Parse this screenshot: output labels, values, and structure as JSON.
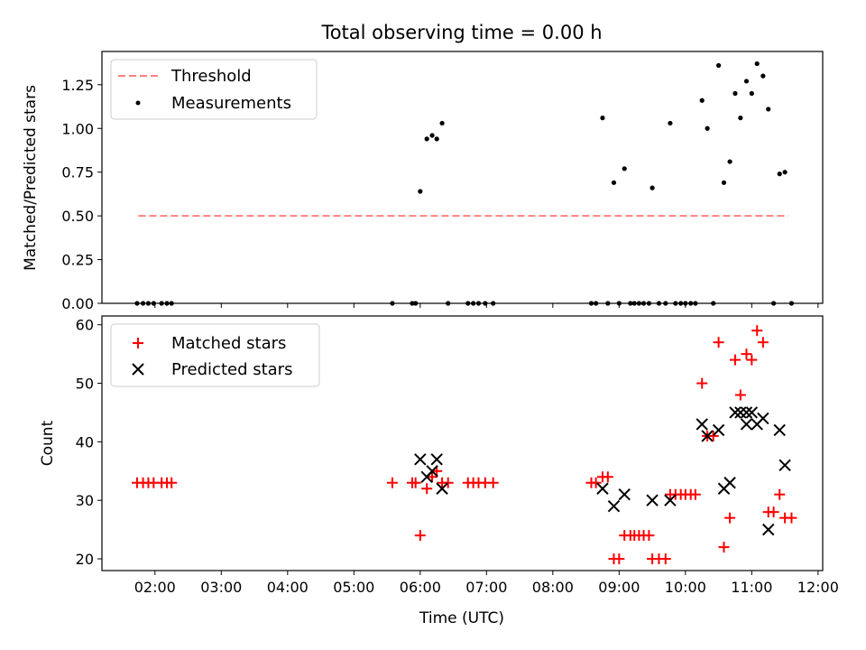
{
  "chart_data": [
    {
      "type": "scatter",
      "title": "Total observing time = 0.00 h",
      "xlabel": "",
      "ylabel": "Matched/Predicted stars",
      "ylim": [
        0,
        1.44
      ],
      "yticks": [
        "0.00",
        "0.25",
        "0.50",
        "0.75",
        "1.00",
        "1.25"
      ],
      "ytick_values": [
        0,
        0.25,
        0.5,
        0.75,
        1.0,
        1.25
      ],
      "legend_position": "upper-left",
      "grid": false,
      "threshold": {
        "name": "Threshold",
        "value": 0.5,
        "color": "#ff8080",
        "x_range": [
          1.75,
          11.55
        ]
      },
      "series": [
        {
          "name": "Measurements",
          "color": "#000000",
          "marker": "dot",
          "points": [
            [
              1.73,
              0
            ],
            [
              1.82,
              0
            ],
            [
              1.9,
              0
            ],
            [
              1.98,
              0
            ],
            [
              2.1,
              0
            ],
            [
              2.18,
              0
            ],
            [
              2.25,
              0
            ],
            [
              5.58,
              0
            ],
            [
              5.88,
              0
            ],
            [
              5.93,
              0
            ],
            [
              6.0,
              0.64
            ],
            [
              6.1,
              0.94
            ],
            [
              6.18,
              0.96
            ],
            [
              6.25,
              0.94
            ],
            [
              6.33,
              1.03
            ],
            [
              6.42,
              0
            ],
            [
              6.72,
              0
            ],
            [
              6.8,
              0
            ],
            [
              6.88,
              0
            ],
            [
              6.98,
              0
            ],
            [
              7.1,
              0
            ],
            [
              8.58,
              0
            ],
            [
              8.65,
              0
            ],
            [
              8.75,
              1.06
            ],
            [
              8.83,
              0
            ],
            [
              8.92,
              0.69
            ],
            [
              9.0,
              0
            ],
            [
              9.08,
              0.77
            ],
            [
              9.17,
              0
            ],
            [
              9.23,
              0
            ],
            [
              9.3,
              0
            ],
            [
              9.37,
              0
            ],
            [
              9.45,
              0
            ],
            [
              9.5,
              0.66
            ],
            [
              9.6,
              0
            ],
            [
              9.7,
              0
            ],
            [
              9.77,
              1.03
            ],
            [
              9.85,
              0
            ],
            [
              9.93,
              0
            ],
            [
              10.0,
              0
            ],
            [
              10.08,
              0
            ],
            [
              10.15,
              0
            ],
            [
              10.25,
              1.16
            ],
            [
              10.33,
              1.0
            ],
            [
              10.42,
              0
            ],
            [
              10.5,
              1.36
            ],
            [
              10.58,
              0.69
            ],
            [
              10.67,
              0.81
            ],
            [
              10.75,
              1.2
            ],
            [
              10.83,
              1.06
            ],
            [
              10.92,
              1.27
            ],
            [
              11.0,
              1.2
            ],
            [
              11.08,
              1.37
            ],
            [
              11.17,
              1.3
            ],
            [
              11.25,
              1.11
            ],
            [
              11.33,
              0
            ],
            [
              11.42,
              0.74
            ],
            [
              11.5,
              0.75
            ],
            [
              11.6,
              0
            ]
          ]
        }
      ]
    },
    {
      "type": "scatter",
      "title": "",
      "xlabel": "Time (UTC)",
      "ylabel": "Count",
      "ylim": [
        18,
        61.5
      ],
      "yticks": [
        "20",
        "30",
        "40",
        "50",
        "60"
      ],
      "ytick_values": [
        20,
        30,
        40,
        50,
        60
      ],
      "xlim": [
        1.2,
        12.07
      ],
      "xticks": [
        "02:00",
        "03:00",
        "04:00",
        "05:00",
        "06:00",
        "07:00",
        "08:00",
        "09:00",
        "10:00",
        "11:00",
        "12:00"
      ],
      "xtick_values": [
        2,
        3,
        4,
        5,
        6,
        7,
        8,
        9,
        10,
        11,
        12
      ],
      "legend_position": "upper-left",
      "grid": false,
      "series": [
        {
          "name": "Matched stars",
          "color": "#ff0000",
          "marker": "plus",
          "points": [
            [
              1.73,
              33
            ],
            [
              1.82,
              33
            ],
            [
              1.9,
              33
            ],
            [
              1.98,
              33
            ],
            [
              2.1,
              33
            ],
            [
              2.18,
              33
            ],
            [
              2.25,
              33
            ],
            [
              5.58,
              33
            ],
            [
              5.88,
              33
            ],
            [
              5.93,
              33
            ],
            [
              6.0,
              24
            ],
            [
              6.1,
              32
            ],
            [
              6.18,
              34
            ],
            [
              6.25,
              35
            ],
            [
              6.33,
              33
            ],
            [
              6.42,
              33
            ],
            [
              6.72,
              33
            ],
            [
              6.8,
              33
            ],
            [
              6.88,
              33
            ],
            [
              6.98,
              33
            ],
            [
              7.1,
              33
            ],
            [
              8.58,
              33
            ],
            [
              8.65,
              33
            ],
            [
              8.75,
              34
            ],
            [
              8.83,
              34
            ],
            [
              8.92,
              20
            ],
            [
              9.0,
              20
            ],
            [
              9.08,
              24
            ],
            [
              9.17,
              24
            ],
            [
              9.23,
              24
            ],
            [
              9.3,
              24
            ],
            [
              9.37,
              24
            ],
            [
              9.45,
              24
            ],
            [
              9.5,
              20
            ],
            [
              9.6,
              20
            ],
            [
              9.7,
              20
            ],
            [
              9.77,
              31
            ],
            [
              9.85,
              31
            ],
            [
              9.93,
              31
            ],
            [
              10.0,
              31
            ],
            [
              10.08,
              31
            ],
            [
              10.15,
              31
            ],
            [
              10.25,
              50
            ],
            [
              10.33,
              41
            ],
            [
              10.42,
              41
            ],
            [
              10.5,
              57
            ],
            [
              10.58,
              22
            ],
            [
              10.67,
              27
            ],
            [
              10.75,
              54
            ],
            [
              10.83,
              48
            ],
            [
              10.92,
              55
            ],
            [
              11.0,
              54
            ],
            [
              11.08,
              59
            ],
            [
              11.17,
              57
            ],
            [
              11.25,
              28
            ],
            [
              11.33,
              28
            ],
            [
              11.42,
              31
            ],
            [
              11.5,
              27
            ],
            [
              11.6,
              27
            ]
          ]
        },
        {
          "name": "Predicted stars",
          "color": "#000000",
          "marker": "x",
          "points": [
            [
              6.0,
              37
            ],
            [
              6.1,
              34
            ],
            [
              6.18,
              35
            ],
            [
              6.25,
              37
            ],
            [
              6.33,
              32
            ],
            [
              8.75,
              32
            ],
            [
              8.92,
              29
            ],
            [
              9.08,
              31
            ],
            [
              9.5,
              30
            ],
            [
              9.77,
              30
            ],
            [
              10.25,
              43
            ],
            [
              10.33,
              41
            ],
            [
              10.5,
              42
            ],
            [
              10.58,
              32
            ],
            [
              10.67,
              33
            ],
            [
              10.75,
              45
            ],
            [
              10.83,
              45
            ],
            [
              10.92,
              43
            ],
            [
              10.92,
              45
            ],
            [
              11.0,
              45
            ],
            [
              11.08,
              43
            ],
            [
              11.17,
              44
            ],
            [
              11.25,
              25
            ],
            [
              11.42,
              42
            ],
            [
              11.5,
              36
            ]
          ]
        }
      ]
    }
  ]
}
